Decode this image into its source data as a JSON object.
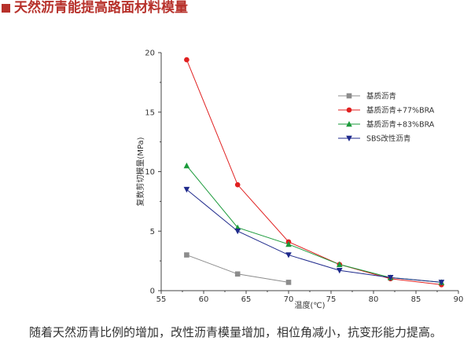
{
  "header": {
    "title": "天然沥青能提高路面材料模量"
  },
  "caption": "随着天然沥青比例的增加，改性沥青模量增加，相位角减小，抗变形能力提高。",
  "chart_data": {
    "type": "line",
    "xlabel": "温度(℃)",
    "ylabel": "复数剪切模量(MPa)",
    "xlim": [
      55,
      90
    ],
    "ylim": [
      0,
      20
    ],
    "xticks": [
      55,
      60,
      65,
      70,
      75,
      80,
      85,
      90
    ],
    "yticks": [
      0,
      5,
      10,
      15,
      20
    ],
    "legend_position": "top-right",
    "grid": false,
    "series": [
      {
        "name": "基质沥青",
        "color": "#8c8c8c",
        "marker": "square",
        "x": [
          58,
          64,
          70
        ],
        "values": [
          3.0,
          1.4,
          0.7
        ]
      },
      {
        "name": "基质沥青+77%BRA",
        "color": "#e02020",
        "marker": "circle",
        "x": [
          58,
          64,
          70,
          76,
          82,
          88
        ],
        "values": [
          19.4,
          8.9,
          4.1,
          2.2,
          1.0,
          0.5
        ]
      },
      {
        "name": "基质沥青+83%BRA",
        "color": "#1a9a3a",
        "marker": "triangle-up",
        "x": [
          58,
          64,
          70,
          76,
          82,
          88
        ],
        "values": [
          10.5,
          5.3,
          3.9,
          2.2,
          1.1,
          0.7
        ]
      },
      {
        "name": "SBS改性沥青",
        "color": "#1f2a8c",
        "marker": "triangle-down",
        "x": [
          58,
          64,
          70,
          76,
          82,
          88
        ],
        "values": [
          8.5,
          5.0,
          3.0,
          1.7,
          1.1,
          0.7
        ]
      }
    ]
  }
}
